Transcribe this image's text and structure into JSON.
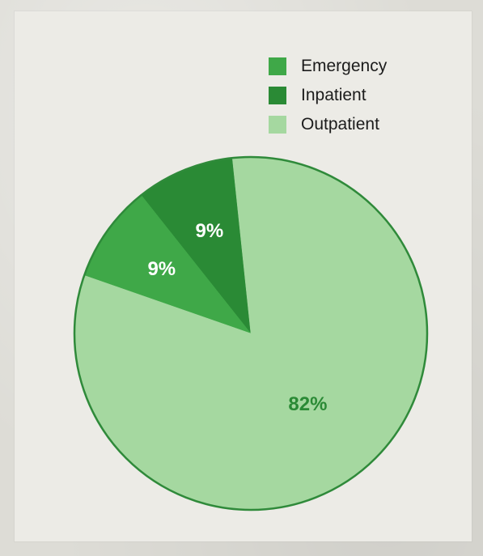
{
  "chart_data": {
    "type": "pie",
    "categories": [
      "Emergency",
      "Inpatient",
      "Outpatient"
    ],
    "values": [
      9,
      9,
      82
    ],
    "labels": [
      "9%",
      "9%",
      "82%"
    ],
    "colors": {
      "Emergency": "#3fa848",
      "Inpatient": "#2a8a35",
      "Outpatient": "#a5d8a0"
    },
    "label_colors": {
      "Emergency": "#ffffff",
      "Inpatient": "#ffffff",
      "Outpatient": "#2a8a35"
    },
    "border_color": "#2f8a3a",
    "legend": {
      "position": "top-right",
      "items": [
        "Emergency",
        "Inpatient",
        "Outpatient"
      ]
    }
  }
}
